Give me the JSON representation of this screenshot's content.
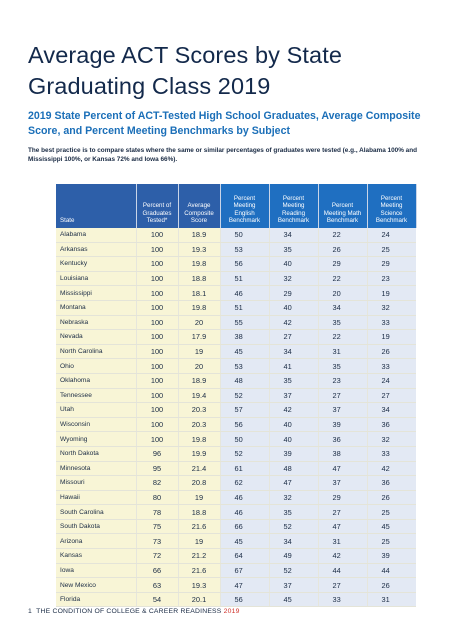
{
  "title_line1": "Average ACT Scores by State",
  "title_line2": "Graduating Class 2019",
  "subtitle": "2019 State Percent of ACT-Tested High School Graduates, Average Composite Score, and Percent Meeting Benchmarks by Subject",
  "note": "The best practice is to compare states where the same or similar percentages of graduates were tested (e.g., Alabama 100% and Mississippi 100%, or Kansas 72% and Iowa 66%).",
  "table": {
    "headers": [
      "State",
      "Percent of Graduates Tested*",
      "Average Composite Score",
      "Percent Meeting English Benchmark",
      "Percent Meeting Reading Benchmark",
      "Percent Meeting Math Benchmark",
      "Percent Meeting Science Benchmark"
    ],
    "rows": [
      [
        "Alabama",
        "100",
        "18.9",
        "50",
        "34",
        "22",
        "24"
      ],
      [
        "Arkansas",
        "100",
        "19.3",
        "53",
        "35",
        "26",
        "25"
      ],
      [
        "Kentucky",
        "100",
        "19.8",
        "56",
        "40",
        "29",
        "29"
      ],
      [
        "Louisiana",
        "100",
        "18.8",
        "51",
        "32",
        "22",
        "23"
      ],
      [
        "Mississippi",
        "100",
        "18.1",
        "46",
        "29",
        "20",
        "19"
      ],
      [
        "Montana",
        "100",
        "19.8",
        "51",
        "40",
        "34",
        "32"
      ],
      [
        "Nebraska",
        "100",
        "20",
        "55",
        "42",
        "35",
        "33"
      ],
      [
        "Nevada",
        "100",
        "17.9",
        "38",
        "27",
        "22",
        "19"
      ],
      [
        "North Carolina",
        "100",
        "19",
        "45",
        "34",
        "31",
        "26"
      ],
      [
        "Ohio",
        "100",
        "20",
        "53",
        "41",
        "35",
        "33"
      ],
      [
        "Oklahoma",
        "100",
        "18.9",
        "48",
        "35",
        "23",
        "24"
      ],
      [
        "Tennessee",
        "100",
        "19.4",
        "52",
        "37",
        "27",
        "27"
      ],
      [
        "Utah",
        "100",
        "20.3",
        "57",
        "42",
        "37",
        "34"
      ],
      [
        "Wisconsin",
        "100",
        "20.3",
        "56",
        "40",
        "39",
        "36"
      ],
      [
        "Wyoming",
        "100",
        "19.8",
        "50",
        "40",
        "36",
        "32"
      ],
      [
        "North Dakota",
        "96",
        "19.9",
        "52",
        "39",
        "38",
        "33"
      ],
      [
        "Minnesota",
        "95",
        "21.4",
        "61",
        "48",
        "47",
        "42"
      ],
      [
        "Missouri",
        "82",
        "20.8",
        "62",
        "47",
        "37",
        "36"
      ],
      [
        "Hawaii",
        "80",
        "19",
        "46",
        "32",
        "29",
        "26"
      ],
      [
        "South Carolina",
        "78",
        "18.8",
        "46",
        "35",
        "27",
        "25"
      ],
      [
        "South Dakota",
        "75",
        "21.6",
        "66",
        "52",
        "47",
        "45"
      ],
      [
        "Arizona",
        "73",
        "19",
        "45",
        "34",
        "31",
        "25"
      ],
      [
        "Kansas",
        "72",
        "21.2",
        "64",
        "49",
        "42",
        "39"
      ],
      [
        "Iowa",
        "66",
        "21.6",
        "67",
        "52",
        "44",
        "44"
      ],
      [
        "New Mexico",
        "63",
        "19.3",
        "47",
        "37",
        "27",
        "26"
      ],
      [
        "Florida",
        "54",
        "20.1",
        "56",
        "45",
        "33",
        "31"
      ]
    ]
  },
  "footer": {
    "page": "1",
    "text": "THE CONDITION OF COLLEGE & CAREER READINESS",
    "year": "2019"
  }
}
